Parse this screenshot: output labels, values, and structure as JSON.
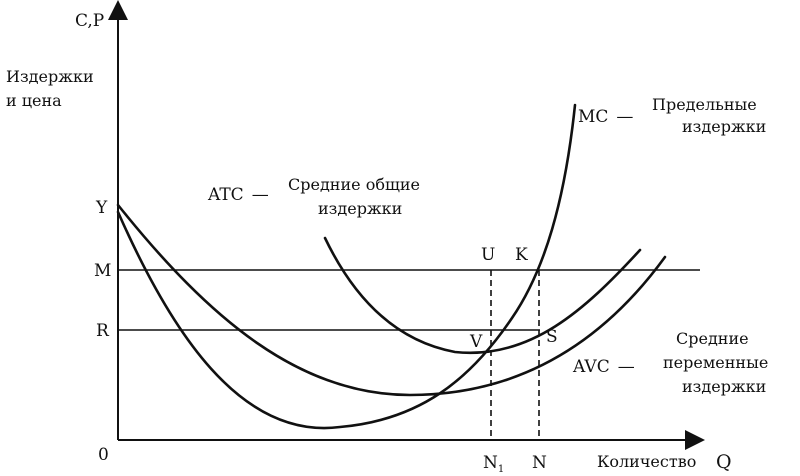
{
  "chart_data": {
    "type": "line",
    "y_axis_label": "C,P",
    "y_axis_desc": [
      "Издержки",
      "и цена"
    ],
    "x_axis_label": "Количество",
    "x_axis_letter": "Q",
    "origin_label": "0",
    "y_levels": [
      {
        "key": "Y",
        "label": "Y"
      },
      {
        "key": "M",
        "label": "M"
      },
      {
        "key": "R",
        "label": "R"
      }
    ],
    "x_points": [
      {
        "key": "N1",
        "label": "N",
        "sub": "1"
      },
      {
        "key": "N",
        "label": "N"
      }
    ],
    "curves": [
      {
        "key": "MC",
        "label": "MC",
        "dash": "—",
        "desc": [
          "Предельные",
          "издержки"
        ]
      },
      {
        "key": "ATC",
        "label": "ATC",
        "dash": "—",
        "desc": [
          "Средние общие",
          "издержки"
        ]
      },
      {
        "key": "AVC",
        "label": "AVC",
        "dash": "—",
        "desc": [
          "Средние",
          "переменные",
          "издержки"
        ]
      }
    ],
    "points": [
      {
        "key": "U",
        "label": "U"
      },
      {
        "key": "K",
        "label": "K"
      },
      {
        "key": "V",
        "label": "V"
      },
      {
        "key": "S",
        "label": "S"
      }
    ]
  }
}
